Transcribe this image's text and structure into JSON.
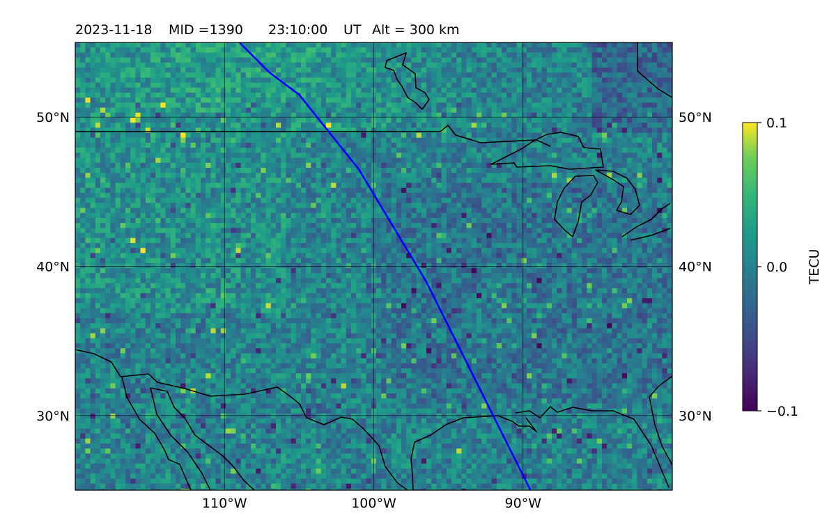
{
  "title": {
    "date": "2023-11-18",
    "mid_label": "MID =1390",
    "time": "23:10:00",
    "time_unit": "UT",
    "alt_label": "Alt = 300 km"
  },
  "map": {
    "lon_range": [
      -120,
      -80
    ],
    "lat_range": [
      25,
      55
    ],
    "lat_ticks": [
      {
        "value": 50,
        "label": "50°N"
      },
      {
        "value": 40,
        "label": "40°N"
      },
      {
        "value": 30,
        "label": "30°N"
      }
    ],
    "lon_ticks": [
      {
        "value": -110,
        "label": "110°W"
      },
      {
        "value": -100,
        "label": "100°W"
      },
      {
        "value": -90,
        "label": "90°W"
      }
    ],
    "gridlines": true,
    "track_color": "#0000ff",
    "coastline_color": "#000000"
  },
  "chart_data": {
    "type": "heatmap",
    "variable": "TEC perturbation",
    "colormap": "viridis",
    "vmin": -0.1,
    "vmax": 0.1,
    "colorbar": {
      "label": "TECU",
      "ticks": [
        {
          "value": 0.1,
          "label": "0.1"
        },
        {
          "value": 0.0,
          "label": "0.0"
        },
        {
          "value": -0.1,
          "label": "−0.1"
        }
      ]
    },
    "track": [
      [
        -109,
        55
      ],
      [
        -107,
        53
      ],
      [
        -105,
        51.5
      ],
      [
        -103,
        49
      ],
      [
        -101,
        46.5
      ],
      [
        -99.5,
        44
      ],
      [
        -98,
        41.5
      ],
      [
        -96.5,
        39
      ],
      [
        -95,
        36
      ],
      [
        -93.5,
        33
      ],
      [
        -92,
        30
      ],
      [
        -90.5,
        27
      ],
      [
        -89.5,
        25
      ]
    ]
  }
}
